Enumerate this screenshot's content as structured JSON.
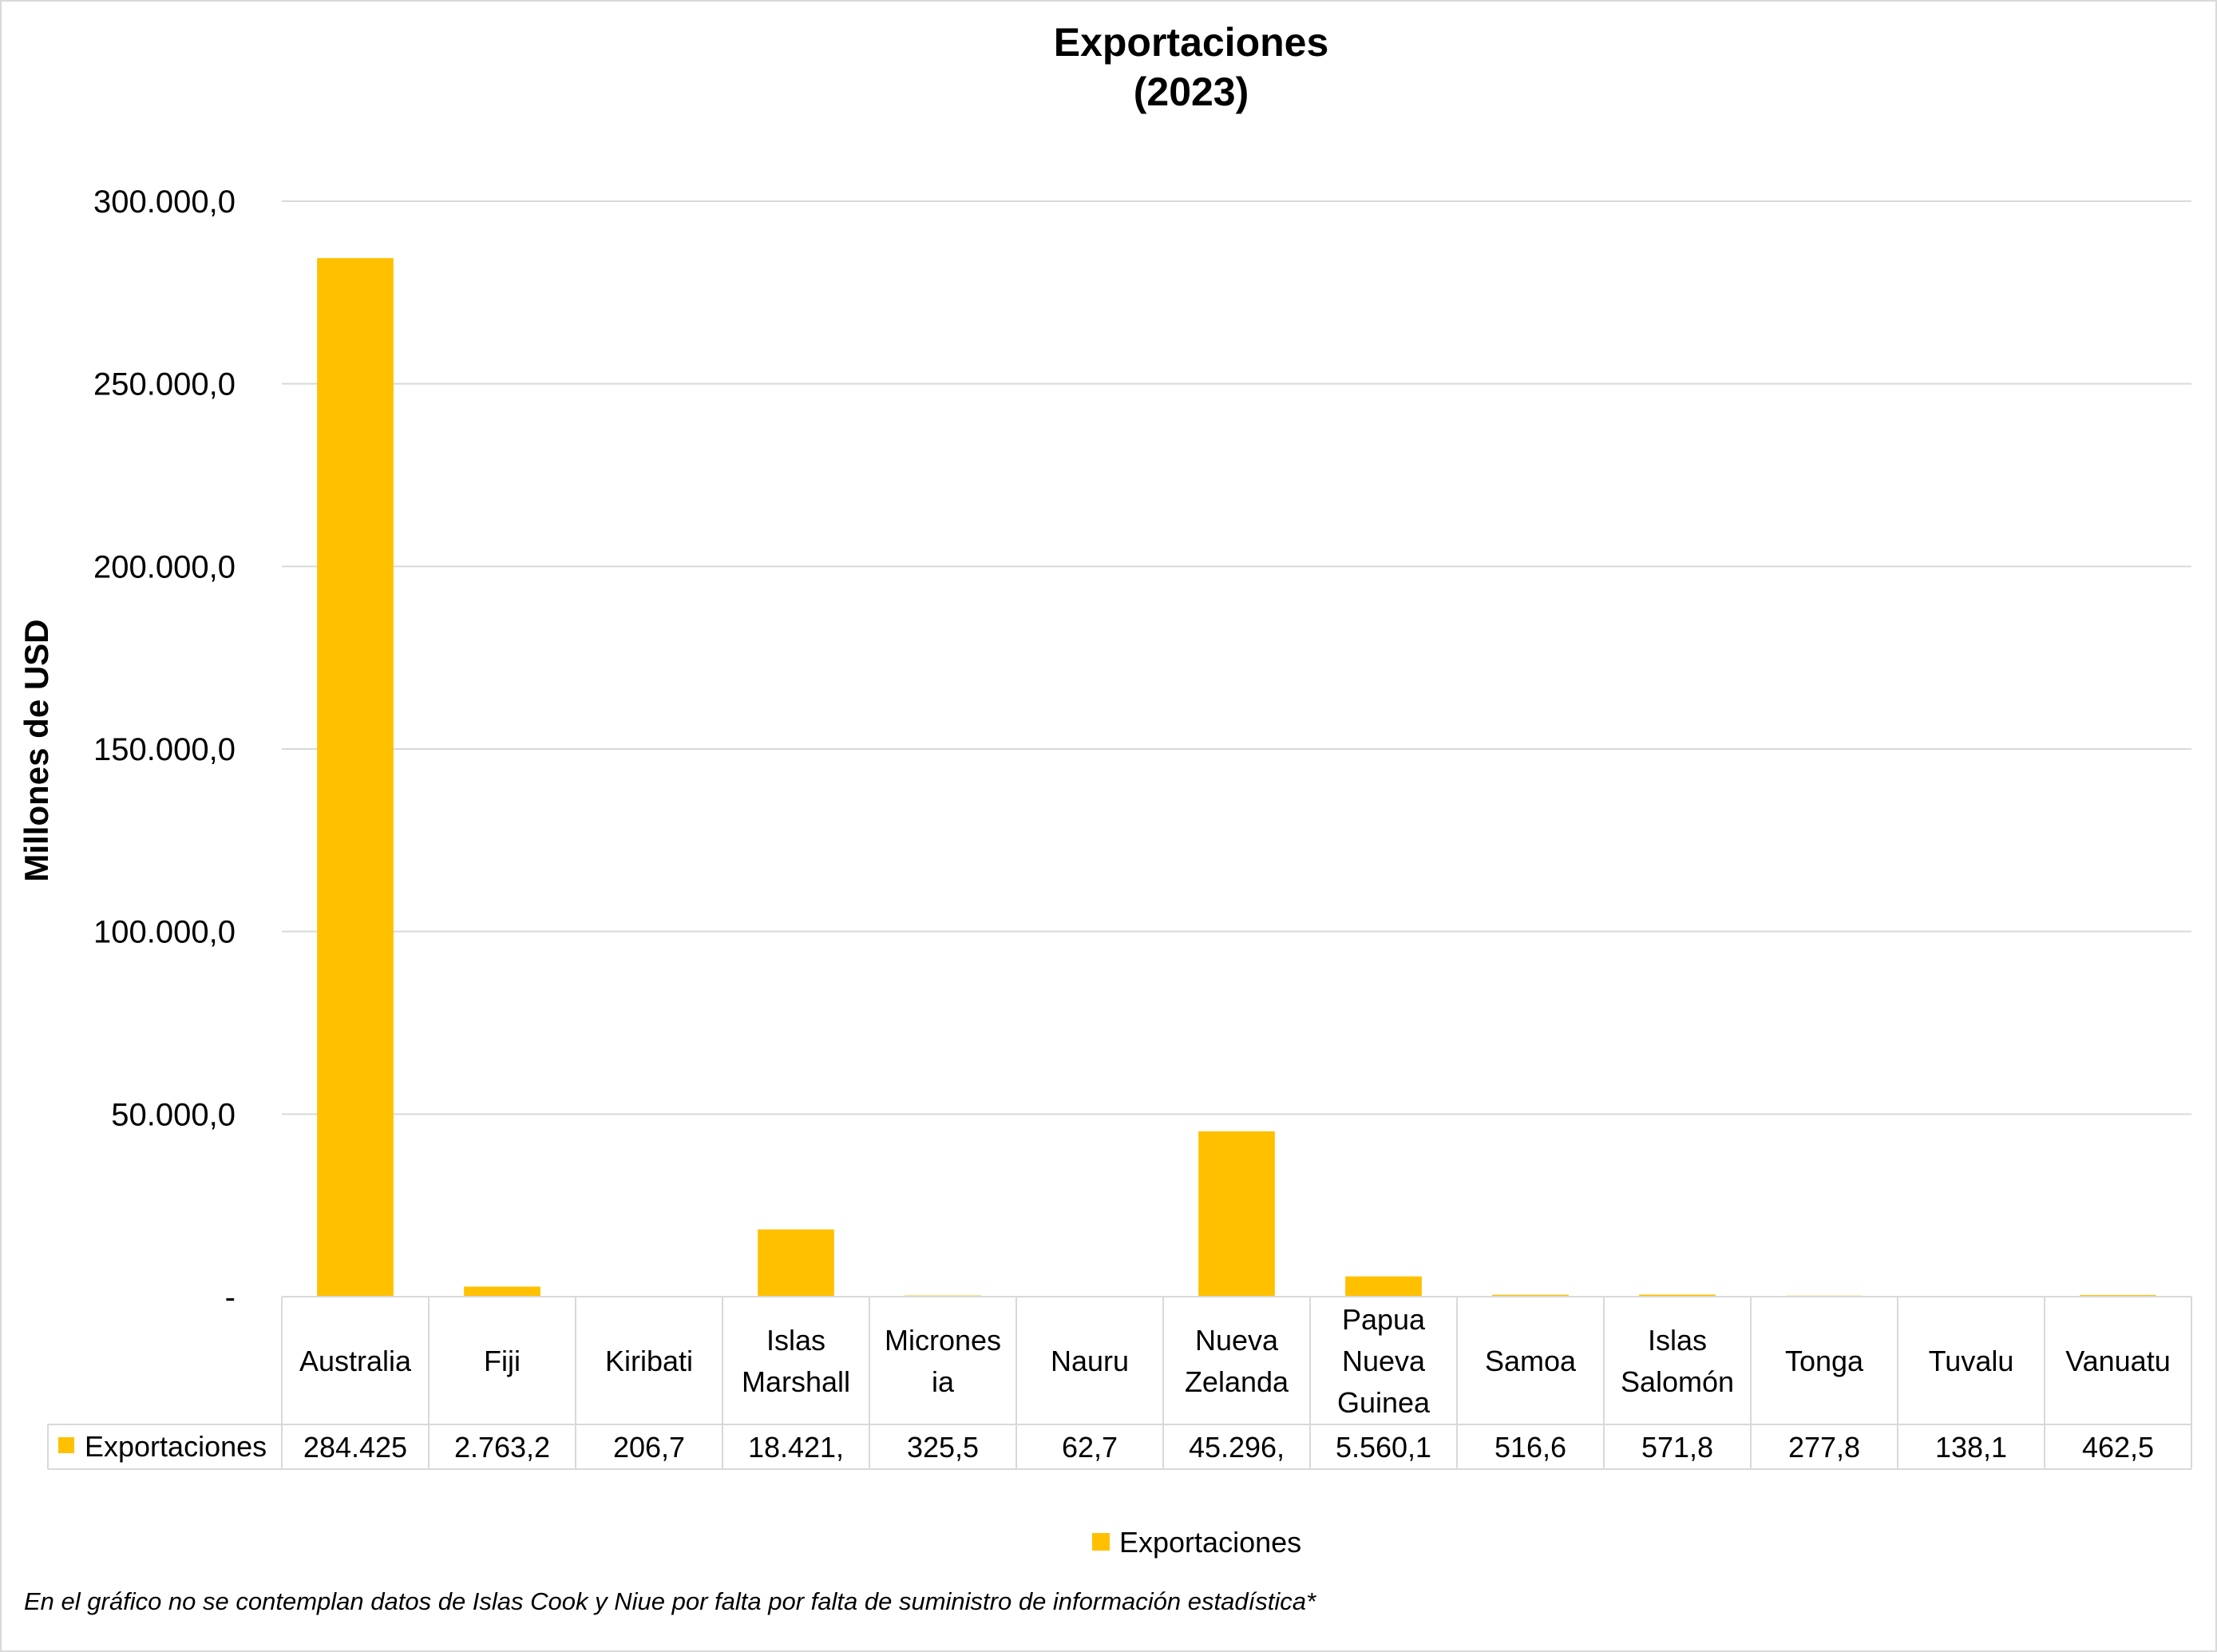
{
  "chart_data": {
    "type": "bar",
    "title": "Exportaciones",
    "subtitle": "(2023)",
    "ylabel": "Millones de USD",
    "xlabel": "",
    "ylim": [
      0,
      300000
    ],
    "yticks": [
      0,
      50000,
      100000,
      150000,
      200000,
      250000,
      300000
    ],
    "ytick_labels": [
      "-",
      "50.000,0",
      "100.000,0",
      "150.000,0",
      "200.000,0",
      "250.000,0",
      "300.000,0"
    ],
    "grid": true,
    "legend_position": "bottom",
    "series": [
      {
        "name": "Exportaciones",
        "color": "#FFC000",
        "values": [
          284425,
          2763.2,
          206.7,
          18421,
          325.5,
          62.7,
          45296,
          5560.1,
          516.6,
          571.8,
          277.8,
          138.1,
          462.5
        ],
        "value_labels": [
          "284.425",
          "2.763,2",
          "206,7",
          "18.421,",
          "325,5",
          "62,7",
          "45.296,",
          "5.560,1",
          "516,6",
          "571,8",
          "277,8",
          "138,1",
          "462,5"
        ]
      }
    ],
    "categories": [
      [
        "Australia"
      ],
      [
        "Fiji"
      ],
      [
        "Kiribati"
      ],
      [
        "Islas",
        "Marshall"
      ],
      [
        "Micrones",
        "ia"
      ],
      [
        "Nauru"
      ],
      [
        "Nueva",
        "Zelanda"
      ],
      [
        "Papua",
        "Nueva",
        "Guinea"
      ],
      [
        "Samoa"
      ],
      [
        "Islas",
        "Salomón"
      ],
      [
        "Tonga"
      ],
      [
        "Tuvalu"
      ],
      [
        "Vanuatu"
      ]
    ]
  },
  "footnote": "En el gráfico no se contemplan datos de Islas Cook y Niue por falta por falta de suministro de información estadística*"
}
